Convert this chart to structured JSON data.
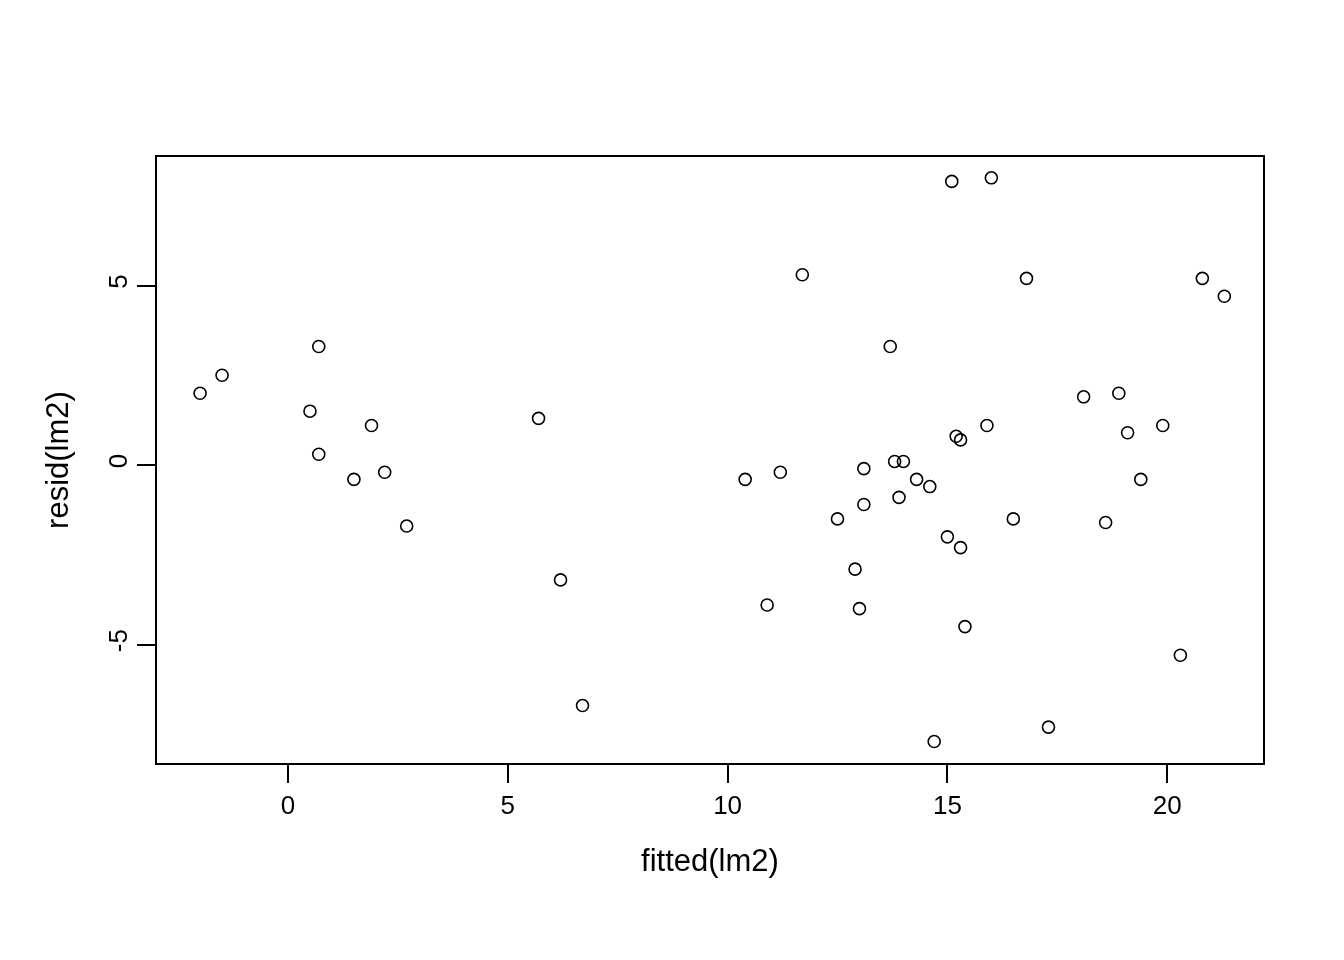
{
  "chart_data": {
    "type": "scatter",
    "xlabel": "fitted(lm2)",
    "ylabel": "resid(lm2)",
    "marker": "circle",
    "grid": false,
    "legend": false,
    "xlim": [
      -2.98,
      22.18
    ],
    "ylim": [
      -8.3,
      8.58
    ],
    "xticks": [
      0,
      5,
      10,
      15,
      20
    ],
    "yticks": [
      -5,
      0,
      5
    ],
    "series": [
      {
        "color": "#000000",
        "x": [
          -2.0,
          -1.5,
          0.7,
          0.5,
          0.7,
          1.9,
          1.5,
          2.2,
          2.7,
          5.7,
          6.2,
          6.7,
          10.4,
          10.9,
          11.2,
          11.7,
          12.5,
          12.9,
          13.0,
          13.1,
          13.1,
          13.7,
          13.8,
          14.0,
          13.9,
          14.3,
          14.6,
          14.7,
          15.0,
          15.1,
          15.2,
          15.3,
          15.3,
          15.4,
          15.9,
          16.0,
          16.5,
          16.8,
          17.3,
          18.1,
          18.6,
          18.9,
          19.1,
          19.4,
          19.9,
          20.3,
          20.8,
          21.3
        ],
        "values": [
          2.0,
          2.5,
          3.3,
          1.5,
          0.3,
          1.1,
          -0.4,
          -0.2,
          -1.7,
          1.3,
          -3.2,
          -6.7,
          -0.4,
          -3.9,
          -0.2,
          5.3,
          -1.5,
          -2.9,
          -4.0,
          -0.1,
          -1.1,
          3.3,
          0.1,
          0.1,
          -0.9,
          -0.4,
          -0.6,
          -7.7,
          -2.0,
          7.9,
          0.8,
          0.7,
          -2.3,
          -4.5,
          1.1,
          8.0,
          -1.5,
          5.2,
          -7.3,
          1.9,
          -1.6,
          2.0,
          0.9,
          -0.4,
          1.1,
          -5.3,
          5.2,
          4.7
        ]
      }
    ]
  }
}
